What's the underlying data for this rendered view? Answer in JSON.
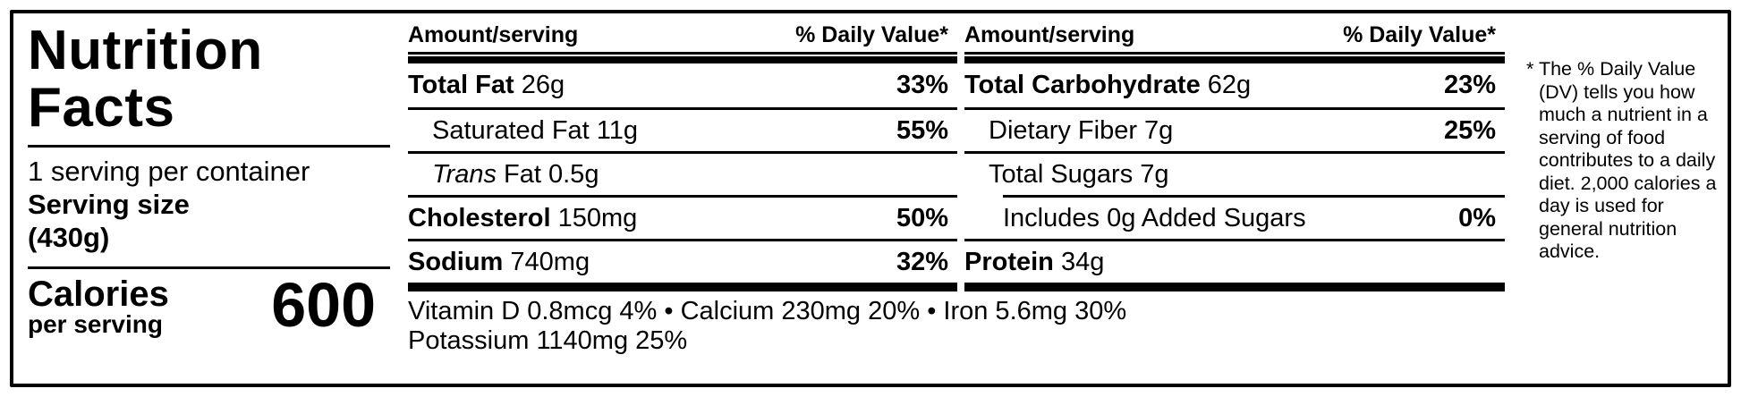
{
  "panel": {
    "title_line1": "Nutrition",
    "title_line2": "Facts",
    "servings": "1 serving per container",
    "serving_size_label": "Serving size",
    "serving_size_value": "(430g)",
    "calories_label": "Calories",
    "calories_sublabel": "per serving",
    "calories_value": "600"
  },
  "columns": {
    "header_amount": "Amount/serving",
    "header_dv": "% Daily Value*",
    "left": [
      {
        "name": "Total Fat",
        "rest": " 26g",
        "dv": "33%"
      },
      {
        "name": "Saturated Fat 11g",
        "rest": "",
        "dv": "55%"
      },
      {
        "name": "Trans",
        "rest": " Fat 0.5g",
        "dv": ""
      },
      {
        "name": "Cholesterol",
        "rest": " 150mg",
        "dv": "50%"
      },
      {
        "name": "Sodium",
        "rest": " 740mg",
        "dv": "32%"
      }
    ],
    "right": [
      {
        "name": "Total Carbohydrate",
        "rest": " 62g",
        "dv": "23%"
      },
      {
        "name": "Dietary Fiber 7g",
        "rest": "",
        "dv": "25%"
      },
      {
        "name": "Total Sugars 7g",
        "rest": "",
        "dv": ""
      },
      {
        "name": "Includes 0g Added Sugars",
        "rest": "",
        "dv": "0%"
      },
      {
        "name": "Protein",
        "rest": " 34g",
        "dv": ""
      }
    ]
  },
  "micronutrients": {
    "line1": "Vitamin D 0.8mcg 4% • Calcium 230mg 20% • Iron 5.6mg 30%",
    "line2": "Potassium 1140mg 25%"
  },
  "footnote": "* The % Daily Value (DV) tells you how much a nutrient in a serving of food contributes to a daily diet. 2,000 calories a day is used for general nutrition advice.",
  "colors": {
    "ink": "#000000",
    "background": "#ffffff"
  }
}
